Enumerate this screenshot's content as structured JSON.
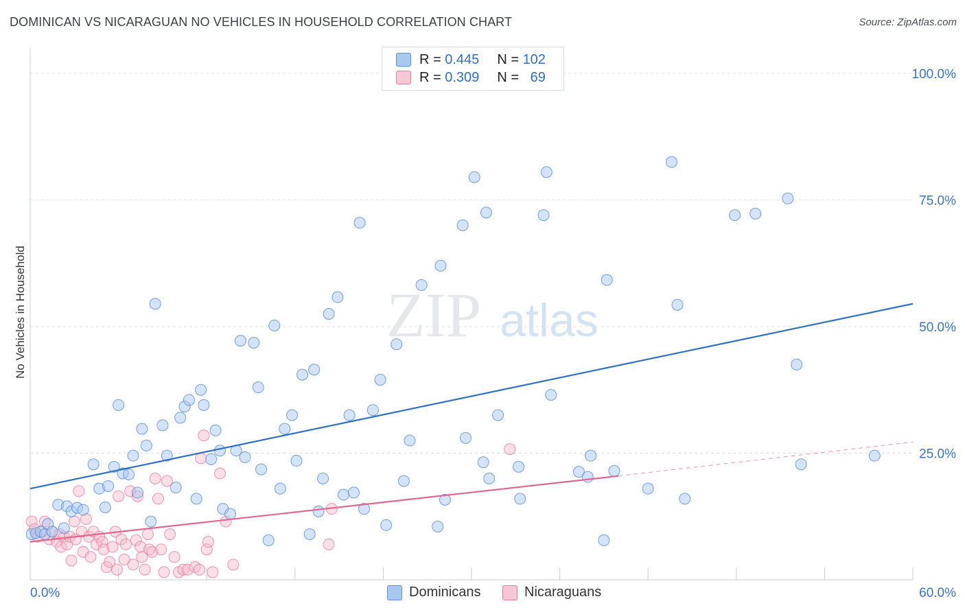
{
  "header": {
    "title": "DOMINICAN VS NICARAGUAN NO VEHICLES IN HOUSEHOLD CORRELATION CHART",
    "source": "Source: ZipAtlas.com"
  },
  "watermark": {
    "zip": "ZIP",
    "atlas": "atlas"
  },
  "legend": {
    "rows": [
      {
        "r_label": "R =",
        "r_value": "0.445",
        "n_label": "N =",
        "n_value": "102"
      },
      {
        "r_label": "R =",
        "r_value": "0.309",
        "n_label": "N =",
        "n_value": "69"
      }
    ]
  },
  "bottom_legend": {
    "dominicans": "Dominicans",
    "nicaraguans": "Nicaraguans"
  },
  "colors": {
    "blue_fill": "#a9c8f0",
    "blue_stroke": "#5b8fd6",
    "blue_line": "#2f6fc5",
    "pink_fill": "#f6b7c9",
    "pink_stroke": "#e77ba0",
    "pink_line": "#e0678f",
    "axis_text": "#3a73c6",
    "grid": "#dde1e6"
  },
  "chart_data": {
    "type": "scatter",
    "title": "DOMINICAN VS NICARAGUAN NO VEHICLES IN HOUSEHOLD CORRELATION CHART",
    "ylabel": "No Vehicles in Household",
    "xlim": [
      0,
      60
    ],
    "ylim": [
      0,
      105
    ],
    "x_ticks": [
      "0.0%",
      "60.0%"
    ],
    "y_ticks": [
      {
        "value": 25,
        "label": "25.0%"
      },
      {
        "value": 50,
        "label": "50.0%"
      },
      {
        "value": 75,
        "label": "75.0%"
      },
      {
        "value": 100,
        "label": "100.0%"
      }
    ],
    "series": [
      {
        "name": "Dominicans",
        "color": "#5b8fd6",
        "trend": {
          "x0": 0,
          "y0": 18,
          "x1": 60,
          "y1": 54.5
        },
        "points": [
          [
            0.1,
            9.0
          ],
          [
            0.4,
            9.2
          ],
          [
            0.7,
            9.5
          ],
          [
            1.0,
            9.0
          ],
          [
            1.2,
            11.0
          ],
          [
            1.5,
            9.5
          ],
          [
            1.9,
            14.8
          ],
          [
            2.3,
            10.2
          ],
          [
            2.5,
            14.5
          ],
          [
            2.8,
            13.5
          ],
          [
            3.2,
            14.2
          ],
          [
            3.6,
            13.8
          ],
          [
            4.3,
            22.8
          ],
          [
            4.7,
            18.0
          ],
          [
            5.1,
            14.3
          ],
          [
            5.3,
            18.5
          ],
          [
            5.7,
            22.3
          ],
          [
            6.0,
            34.5
          ],
          [
            6.3,
            21.0
          ],
          [
            6.7,
            20.8
          ],
          [
            7.0,
            24.5
          ],
          [
            7.3,
            17.2
          ],
          [
            7.6,
            29.8
          ],
          [
            7.9,
            26.5
          ],
          [
            8.2,
            11.5
          ],
          [
            8.5,
            54.5
          ],
          [
            9.0,
            30.5
          ],
          [
            9.3,
            24.5
          ],
          [
            9.9,
            18.2
          ],
          [
            10.2,
            32.0
          ],
          [
            10.5,
            34.2
          ],
          [
            10.8,
            35.5
          ],
          [
            11.3,
            16.0
          ],
          [
            11.6,
            37.5
          ],
          [
            11.8,
            34.5
          ],
          [
            12.3,
            23.8
          ],
          [
            12.6,
            29.5
          ],
          [
            12.9,
            25.5
          ],
          [
            13.1,
            14.0
          ],
          [
            13.6,
            13.0
          ],
          [
            14.0,
            25.5
          ],
          [
            14.3,
            47.2
          ],
          [
            14.6,
            24.2
          ],
          [
            15.2,
            46.8
          ],
          [
            15.5,
            38.0
          ],
          [
            15.7,
            21.8
          ],
          [
            16.2,
            7.8
          ],
          [
            16.6,
            50.2
          ],
          [
            17.0,
            18.0
          ],
          [
            17.3,
            29.8
          ],
          [
            17.8,
            32.5
          ],
          [
            18.1,
            23.5
          ],
          [
            18.5,
            40.5
          ],
          [
            19.0,
            9.0
          ],
          [
            19.3,
            41.5
          ],
          [
            19.6,
            13.5
          ],
          [
            19.9,
            20.0
          ],
          [
            20.3,
            52.5
          ],
          [
            20.9,
            55.8
          ],
          [
            21.3,
            16.8
          ],
          [
            21.7,
            32.5
          ],
          [
            22.0,
            17.2
          ],
          [
            22.4,
            70.5
          ],
          [
            22.7,
            14.0
          ],
          [
            23.3,
            33.5
          ],
          [
            23.8,
            39.5
          ],
          [
            24.2,
            10.8
          ],
          [
            24.9,
            46.5
          ],
          [
            25.4,
            19.5
          ],
          [
            25.8,
            27.5
          ],
          [
            26.6,
            58.2
          ],
          [
            27.7,
            10.5
          ],
          [
            27.9,
            62.0
          ],
          [
            28.2,
            15.8
          ],
          [
            29.4,
            70.0
          ],
          [
            29.6,
            28.0
          ],
          [
            30.2,
            79.5
          ],
          [
            30.8,
            23.2
          ],
          [
            31.0,
            72.5
          ],
          [
            31.2,
            20.0
          ],
          [
            31.8,
            32.5
          ],
          [
            33.2,
            22.3
          ],
          [
            33.3,
            16.0
          ],
          [
            34.9,
            72.0
          ],
          [
            35.1,
            80.5
          ],
          [
            35.4,
            36.5
          ],
          [
            37.3,
            21.3
          ],
          [
            37.9,
            20.3
          ],
          [
            38.1,
            24.5
          ],
          [
            39.0,
            7.8
          ],
          [
            39.2,
            59.2
          ],
          [
            39.7,
            21.5
          ],
          [
            42.0,
            18.0
          ],
          [
            43.6,
            82.5
          ],
          [
            44.0,
            54.3
          ],
          [
            44.5,
            16.0
          ],
          [
            47.9,
            72.0
          ],
          [
            49.3,
            72.3
          ],
          [
            51.5,
            75.3
          ],
          [
            52.1,
            42.5
          ],
          [
            52.4,
            22.8
          ],
          [
            57.4,
            24.5
          ]
        ]
      },
      {
        "name": "Nicaraguans",
        "color": "#e77ba0",
        "trend": {
          "x0": 0,
          "y0": 7.5,
          "x1": 40,
          "y1": 20.5
        },
        "trend_dashed": {
          "x0": 40,
          "y0": 20.5,
          "x1": 60,
          "y1": 27.2
        },
        "points": [
          [
            0.1,
            11.5
          ],
          [
            0.3,
            10.0
          ],
          [
            0.5,
            8.5
          ],
          [
            0.8,
            9.5
          ],
          [
            1.0,
            11.5
          ],
          [
            1.3,
            8.0
          ],
          [
            1.5,
            9.5
          ],
          [
            1.8,
            7.5
          ],
          [
            2.0,
            9.0
          ],
          [
            2.1,
            6.5
          ],
          [
            2.3,
            8.5
          ],
          [
            2.5,
            7.0
          ],
          [
            2.7,
            8.5
          ],
          [
            2.8,
            3.8
          ],
          [
            3.0,
            11.5
          ],
          [
            3.1,
            8.0
          ],
          [
            3.3,
            17.5
          ],
          [
            3.5,
            9.5
          ],
          [
            3.6,
            5.5
          ],
          [
            3.8,
            12.0
          ],
          [
            4.0,
            8.5
          ],
          [
            4.1,
            4.5
          ],
          [
            4.3,
            9.5
          ],
          [
            4.5,
            7.0
          ],
          [
            4.7,
            8.5
          ],
          [
            4.9,
            7.5
          ],
          [
            5.0,
            6.0
          ],
          [
            5.2,
            2.5
          ],
          [
            5.4,
            3.5
          ],
          [
            5.6,
            6.5
          ],
          [
            5.8,
            9.5
          ],
          [
            5.9,
            2.0
          ],
          [
            6.0,
            16.5
          ],
          [
            6.2,
            8.0
          ],
          [
            6.4,
            4.0
          ],
          [
            6.5,
            7.0
          ],
          [
            6.8,
            17.5
          ],
          [
            7.0,
            3.0
          ],
          [
            7.2,
            7.8
          ],
          [
            7.3,
            16.5
          ],
          [
            7.5,
            6.5
          ],
          [
            7.6,
            4.5
          ],
          [
            7.8,
            2.0
          ],
          [
            8.0,
            9.0
          ],
          [
            8.1,
            6.0
          ],
          [
            8.3,
            5.5
          ],
          [
            8.5,
            20.0
          ],
          [
            8.7,
            16.0
          ],
          [
            8.9,
            6.0
          ],
          [
            9.1,
            1.5
          ],
          [
            9.3,
            19.5
          ],
          [
            9.5,
            9.0
          ],
          [
            9.8,
            4.5
          ],
          [
            10.1,
            1.5
          ],
          [
            10.4,
            2.0
          ],
          [
            10.7,
            2.0
          ],
          [
            11.2,
            2.5
          ],
          [
            11.6,
            24.0
          ],
          [
            11.8,
            28.5
          ],
          [
            12.0,
            6.0
          ],
          [
            12.1,
            7.5
          ],
          [
            12.4,
            1.5
          ],
          [
            12.9,
            21.0
          ],
          [
            13.3,
            11.5
          ],
          [
            13.8,
            3.0
          ],
          [
            20.3,
            7.0
          ],
          [
            20.5,
            14.0
          ],
          [
            32.6,
            25.8
          ],
          [
            11.5,
            2.0
          ]
        ]
      }
    ]
  }
}
